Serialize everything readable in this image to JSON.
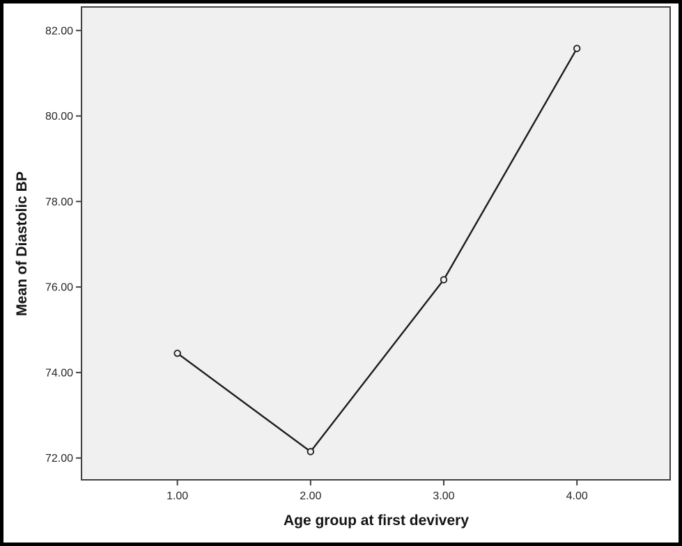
{
  "figure": {
    "kind": "statistics-means-line-plot",
    "background": "#ffffff",
    "border_color": "#000000"
  },
  "chart_data": {
    "type": "line",
    "title": "",
    "xlabel": "Age group at first devivery",
    "ylabel": "Mean of Diastolic BP",
    "x": [
      1.0,
      2.0,
      3.0,
      4.0
    ],
    "y": [
      74.45,
      72.15,
      76.17,
      81.58
    ],
    "x_tick_labels": [
      "1.00",
      "2.00",
      "3.00",
      "4.00"
    ],
    "y_tick_values": [
      82,
      80,
      78,
      76,
      74,
      72
    ],
    "y_tick_labels": [
      "82.00",
      "80.00",
      "78.00",
      "76.00",
      "74.00",
      "72.00"
    ],
    "xlim": [
      0.28,
      4.7
    ],
    "ylim": [
      71.49,
      82.55
    ],
    "grid": false,
    "legend_position": "none",
    "marker": "open-circle",
    "line_color": "#1c1c1c",
    "marker_color": "#1c1c1c",
    "plot_bg": "#f0f0f0",
    "axis_color": "#404040",
    "text_color": "#262626"
  }
}
